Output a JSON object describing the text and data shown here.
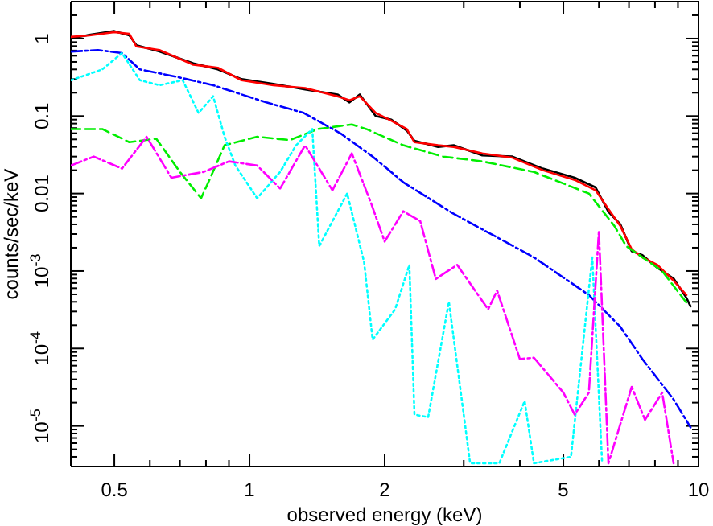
{
  "chart_data": {
    "type": "line",
    "xlabel": "observed energy (keV)",
    "ylabel": "counts/sec/keV",
    "log": "xy",
    "grid": false,
    "xlim": [
      0.4,
      10
    ],
    "ylim": [
      3e-06,
      3
    ],
    "xticks": [
      {
        "value": 0.4,
        "label": null
      },
      0.5,
      {
        "value": 0.6,
        "label": null
      },
      {
        "value": 0.7,
        "label": null
      },
      {
        "value": 0.8,
        "label": null
      },
      {
        "value": 0.9,
        "label": null
      },
      1,
      2,
      {
        "value": 3,
        "label": null
      },
      {
        "value": 4,
        "label": null
      },
      5,
      {
        "value": 6,
        "label": null
      },
      {
        "value": 7,
        "label": null
      },
      {
        "value": 8,
        "label": null
      },
      {
        "value": 9,
        "label": null
      },
      10
    ],
    "yticks": [
      {
        "value": 1e-05,
        "label": "10$^{-5}$"
      },
      {
        "value": 0.0001,
        "label": "10$^{-4}$"
      },
      {
        "value": 0.001,
        "label": "10$^{-3}$"
      },
      0.01,
      0.1,
      1,
      {
        "value": 4e-06,
        "label": null
      },
      {
        "value": 5e-06,
        "label": null
      },
      {
        "value": 6e-06,
        "label": null
      },
      {
        "value": 7e-06,
        "label": null
      },
      {
        "value": 8e-06,
        "label": null
      },
      {
        "value": 9e-06,
        "label": null
      },
      {
        "value": 2e-05,
        "label": null
      },
      {
        "value": 3e-05,
        "label": null
      },
      {
        "value": 4e-05,
        "label": null
      },
      {
        "value": 5e-05,
        "label": null
      },
      {
        "value": 6e-05,
        "label": null
      },
      {
        "value": 7e-05,
        "label": null
      },
      {
        "value": 8e-05,
        "label": null
      },
      {
        "value": 9e-05,
        "label": null
      },
      {
        "value": 0.0002,
        "label": null
      },
      {
        "value": 0.0003,
        "label": null
      },
      {
        "value": 0.0004,
        "label": null
      },
      {
        "value": 0.0005,
        "label": null
      },
      {
        "value": 0.0006,
        "label": null
      },
      {
        "value": 0.0007,
        "label": null
      },
      {
        "value": 0.0008,
        "label": null
      },
      {
        "value": 0.0009,
        "label": null
      },
      {
        "value": 0.002,
        "label": null
      },
      {
        "value": 0.003,
        "label": null
      },
      {
        "value": 0.004,
        "label": null
      },
      {
        "value": 0.005,
        "label": null
      },
      {
        "value": 0.006,
        "label": null
      },
      {
        "value": 0.007,
        "label": null
      },
      {
        "value": 0.008,
        "label": null
      },
      {
        "value": 0.009,
        "label": null
      },
      {
        "value": 0.02,
        "label": null
      },
      {
        "value": 0.03,
        "label": null
      },
      {
        "value": 0.04,
        "label": null
      },
      {
        "value": 0.05,
        "label": null
      },
      {
        "value": 0.06,
        "label": null
      },
      {
        "value": 0.07,
        "label": null
      },
      {
        "value": 0.08,
        "label": null
      },
      {
        "value": 0.09,
        "label": null
      },
      {
        "value": 0.2,
        "label": null
      },
      {
        "value": 0.3,
        "label": null
      },
      {
        "value": 0.4,
        "label": null
      },
      {
        "value": 0.5,
        "label": null
      },
      {
        "value": 0.6,
        "label": null
      },
      {
        "value": 0.7,
        "label": null
      },
      {
        "value": 0.8,
        "label": null
      },
      {
        "value": 0.9,
        "label": null
      },
      {
        "value": 2,
        "label": null
      },
      {
        "value": 3,
        "label": null
      }
    ],
    "series": [
      {
        "color": "#000000",
        "line_style": "solid",
        "x": [
          0.4,
          0.44,
          0.5,
          0.54,
          0.56,
          0.63,
          0.75,
          0.85,
          0.96,
          1.13,
          1.33,
          1.57,
          1.67,
          1.76,
          1.91,
          2.07,
          2.24,
          2.33,
          2.63,
          2.85,
          3.3,
          3.85,
          4.5,
          5.3,
          5.9,
          6.3,
          6.7,
          7.1,
          7.5,
          8.1,
          8.8,
          9.4,
          9.6
        ],
        "values": [
          1.0,
          1.12,
          1.25,
          1.1,
          0.82,
          0.68,
          0.48,
          0.4,
          0.3,
          0.26,
          0.22,
          0.19,
          0.15,
          0.19,
          0.1,
          0.09,
          0.065,
          0.048,
          0.04,
          0.042,
          0.031,
          0.03,
          0.021,
          0.016,
          0.012,
          0.0058,
          0.004,
          0.0018,
          0.0016,
          0.0011,
          0.0008,
          0.00045,
          0.00035
        ]
      },
      {
        "color": "#ff0000",
        "line_style": "solid",
        "x": [
          0.4,
          0.44,
          0.5,
          0.54,
          0.56,
          0.63,
          0.75,
          0.85,
          0.96,
          1.13,
          1.33,
          1.57,
          1.67,
          1.76,
          1.91,
          2.07,
          2.24,
          2.33,
          2.63,
          2.85,
          3.3,
          3.85,
          4.5,
          5.3,
          5.9,
          6.3,
          6.7,
          7.1,
          7.5,
          8.1,
          8.8,
          9.4
        ],
        "values": [
          1.05,
          1.1,
          1.21,
          1.15,
          0.79,
          0.71,
          0.46,
          0.42,
          0.29,
          0.25,
          0.23,
          0.18,
          0.16,
          0.18,
          0.11,
          0.087,
          0.068,
          0.046,
          0.042,
          0.04,
          0.033,
          0.029,
          0.02,
          0.015,
          0.011,
          0.0063,
          0.0038,
          0.0019,
          0.0015,
          0.0012,
          0.00075,
          0.00049
        ]
      },
      {
        "color": "#00ee00",
        "line_style": "dashed",
        "x": [
          0.4,
          0.47,
          0.54,
          0.62,
          0.7,
          0.78,
          0.81,
          0.88,
          1.04,
          1.23,
          1.42,
          1.69,
          1.82,
          2.2,
          2.7,
          3.3,
          4.3,
          5.7,
          6.5,
          6.9,
          8.3,
          9.4
        ],
        "values": [
          0.068,
          0.068,
          0.046,
          0.051,
          0.019,
          0.0087,
          0.014,
          0.042,
          0.054,
          0.049,
          0.068,
          0.078,
          0.068,
          0.042,
          0.03,
          0.026,
          0.019,
          0.01,
          0.0038,
          0.0021,
          0.001,
          0.00039
        ]
      },
      {
        "color": "#0000ff",
        "line_style": "dashdot",
        "x": [
          0.4,
          0.46,
          0.52,
          0.57,
          0.69,
          0.83,
          1.09,
          1.32,
          1.6,
          1.88,
          2.2,
          2.83,
          4.3,
          5.7,
          6.7,
          7.5,
          8.8,
          9.6
        ],
        "values": [
          0.68,
          0.71,
          0.65,
          0.4,
          0.32,
          0.25,
          0.15,
          0.11,
          0.059,
          0.03,
          0.014,
          0.0056,
          0.0015,
          0.00049,
          0.00019,
          7.3e-05,
          2.2e-05,
          9.6e-06
        ]
      },
      {
        "color": "#00ffff",
        "line_style": "dotted",
        "x": [
          0.4,
          0.47,
          0.52,
          0.57,
          0.63,
          0.71,
          0.77,
          0.83,
          0.88,
          0.93,
          1.04,
          1.17,
          1.27,
          1.38,
          1.43,
          1.65,
          1.8,
          1.88,
          2.11,
          2.27,
          2.33,
          2.5,
          2.78,
          3.1,
          3.6,
          4.1,
          4.3,
          5.2,
          5.8,
          6.1
        ],
        "values": [
          0.29,
          0.4,
          0.65,
          0.29,
          0.25,
          0.29,
          0.11,
          0.18,
          0.054,
          0.023,
          0.0087,
          0.019,
          0.042,
          0.068,
          0.0021,
          0.01,
          0.0013,
          0.00013,
          0.00032,
          0.0012,
          1.4e-05,
          1.3e-05,
          0.0004,
          3.3e-06,
          3.3e-06,
          2.1e-05,
          3.3e-06,
          4e-06,
          0.0015,
          3.3e-06
        ]
      },
      {
        "color": "#ff00ff",
        "line_style": "dashdot",
        "x": [
          0.4,
          0.45,
          0.52,
          0.59,
          0.67,
          0.79,
          0.9,
          1.04,
          1.17,
          1.33,
          1.53,
          1.69,
          1.87,
          2.0,
          2.2,
          2.4,
          2.6,
          2.9,
          3.4,
          3.56,
          4.0,
          4.3,
          5.0,
          5.3,
          5.7,
          6.0,
          6.3,
          7.1,
          7.6,
          8.3,
          8.8
        ],
        "values": [
          0.023,
          0.03,
          0.021,
          0.054,
          0.016,
          0.019,
          0.026,
          0.023,
          0.0116,
          0.042,
          0.011,
          0.033,
          0.0072,
          0.0024,
          0.0059,
          0.0044,
          0.00079,
          0.0012,
          0.00032,
          0.00056,
          7.3e-05,
          7.6e-05,
          2.7e-05,
          1.4e-05,
          2.7e-05,
          0.0033,
          3.3e-06,
          3.2e-05,
          1.2e-05,
          2.7e-05,
          3.3e-06
        ]
      }
    ]
  }
}
